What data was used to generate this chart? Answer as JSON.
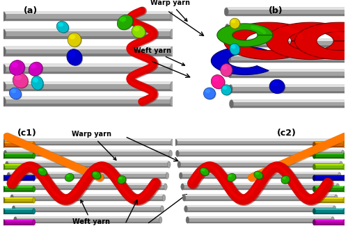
{
  "figure_width": 5.0,
  "figure_height": 3.51,
  "dpi": 100,
  "background_color": "#ffffff",
  "panel_labels": [
    "(a)",
    "(b)",
    "(c1)",
    "(c2)"
  ],
  "panel_label_fontsize": 9,
  "panel_label_fontweight": "bold",
  "warp_annotation_text": "Warp yarn",
  "weft_annotation_text": "Weft yarn",
  "annotation_fontsize": 7,
  "annotation_fontweight": "bold",
  "gray_cyl": "#c8c8c8",
  "gray_cyl_dark": "#909090",
  "gray_cyl_light": "#e8e8e8",
  "gray_cyl_shine": "#f5f5f5",
  "colors": {
    "red": "#dd0000",
    "green": "#22aa00",
    "dark_green": "#007700",
    "blue": "#0000cc",
    "dark_blue": "#000088",
    "yellow": "#ddcc00",
    "cyan": "#00bbcc",
    "magenta": "#cc00bb",
    "pink": "#ee3399",
    "hot_pink": "#ff1493",
    "orange": "#ff7700",
    "light_blue": "#3377ff",
    "lime": "#88dd00",
    "teal": "#009999",
    "purple": "#8800cc",
    "navy": "#000066"
  }
}
